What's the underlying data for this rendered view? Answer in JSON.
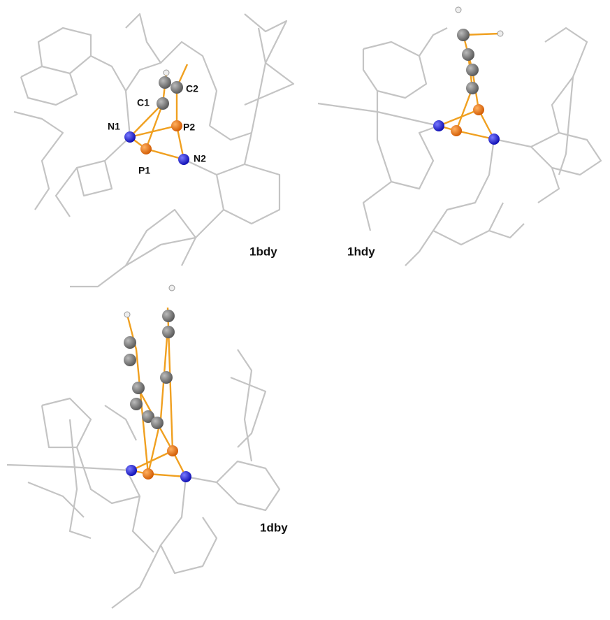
{
  "structures": [
    {
      "name": "1bdy",
      "atom_labels": [
        "C1",
        "C2",
        "N1",
        "P2",
        "P1",
        "N2"
      ]
    },
    {
      "name": "1hdy"
    },
    {
      "name": "1dby"
    }
  ]
}
